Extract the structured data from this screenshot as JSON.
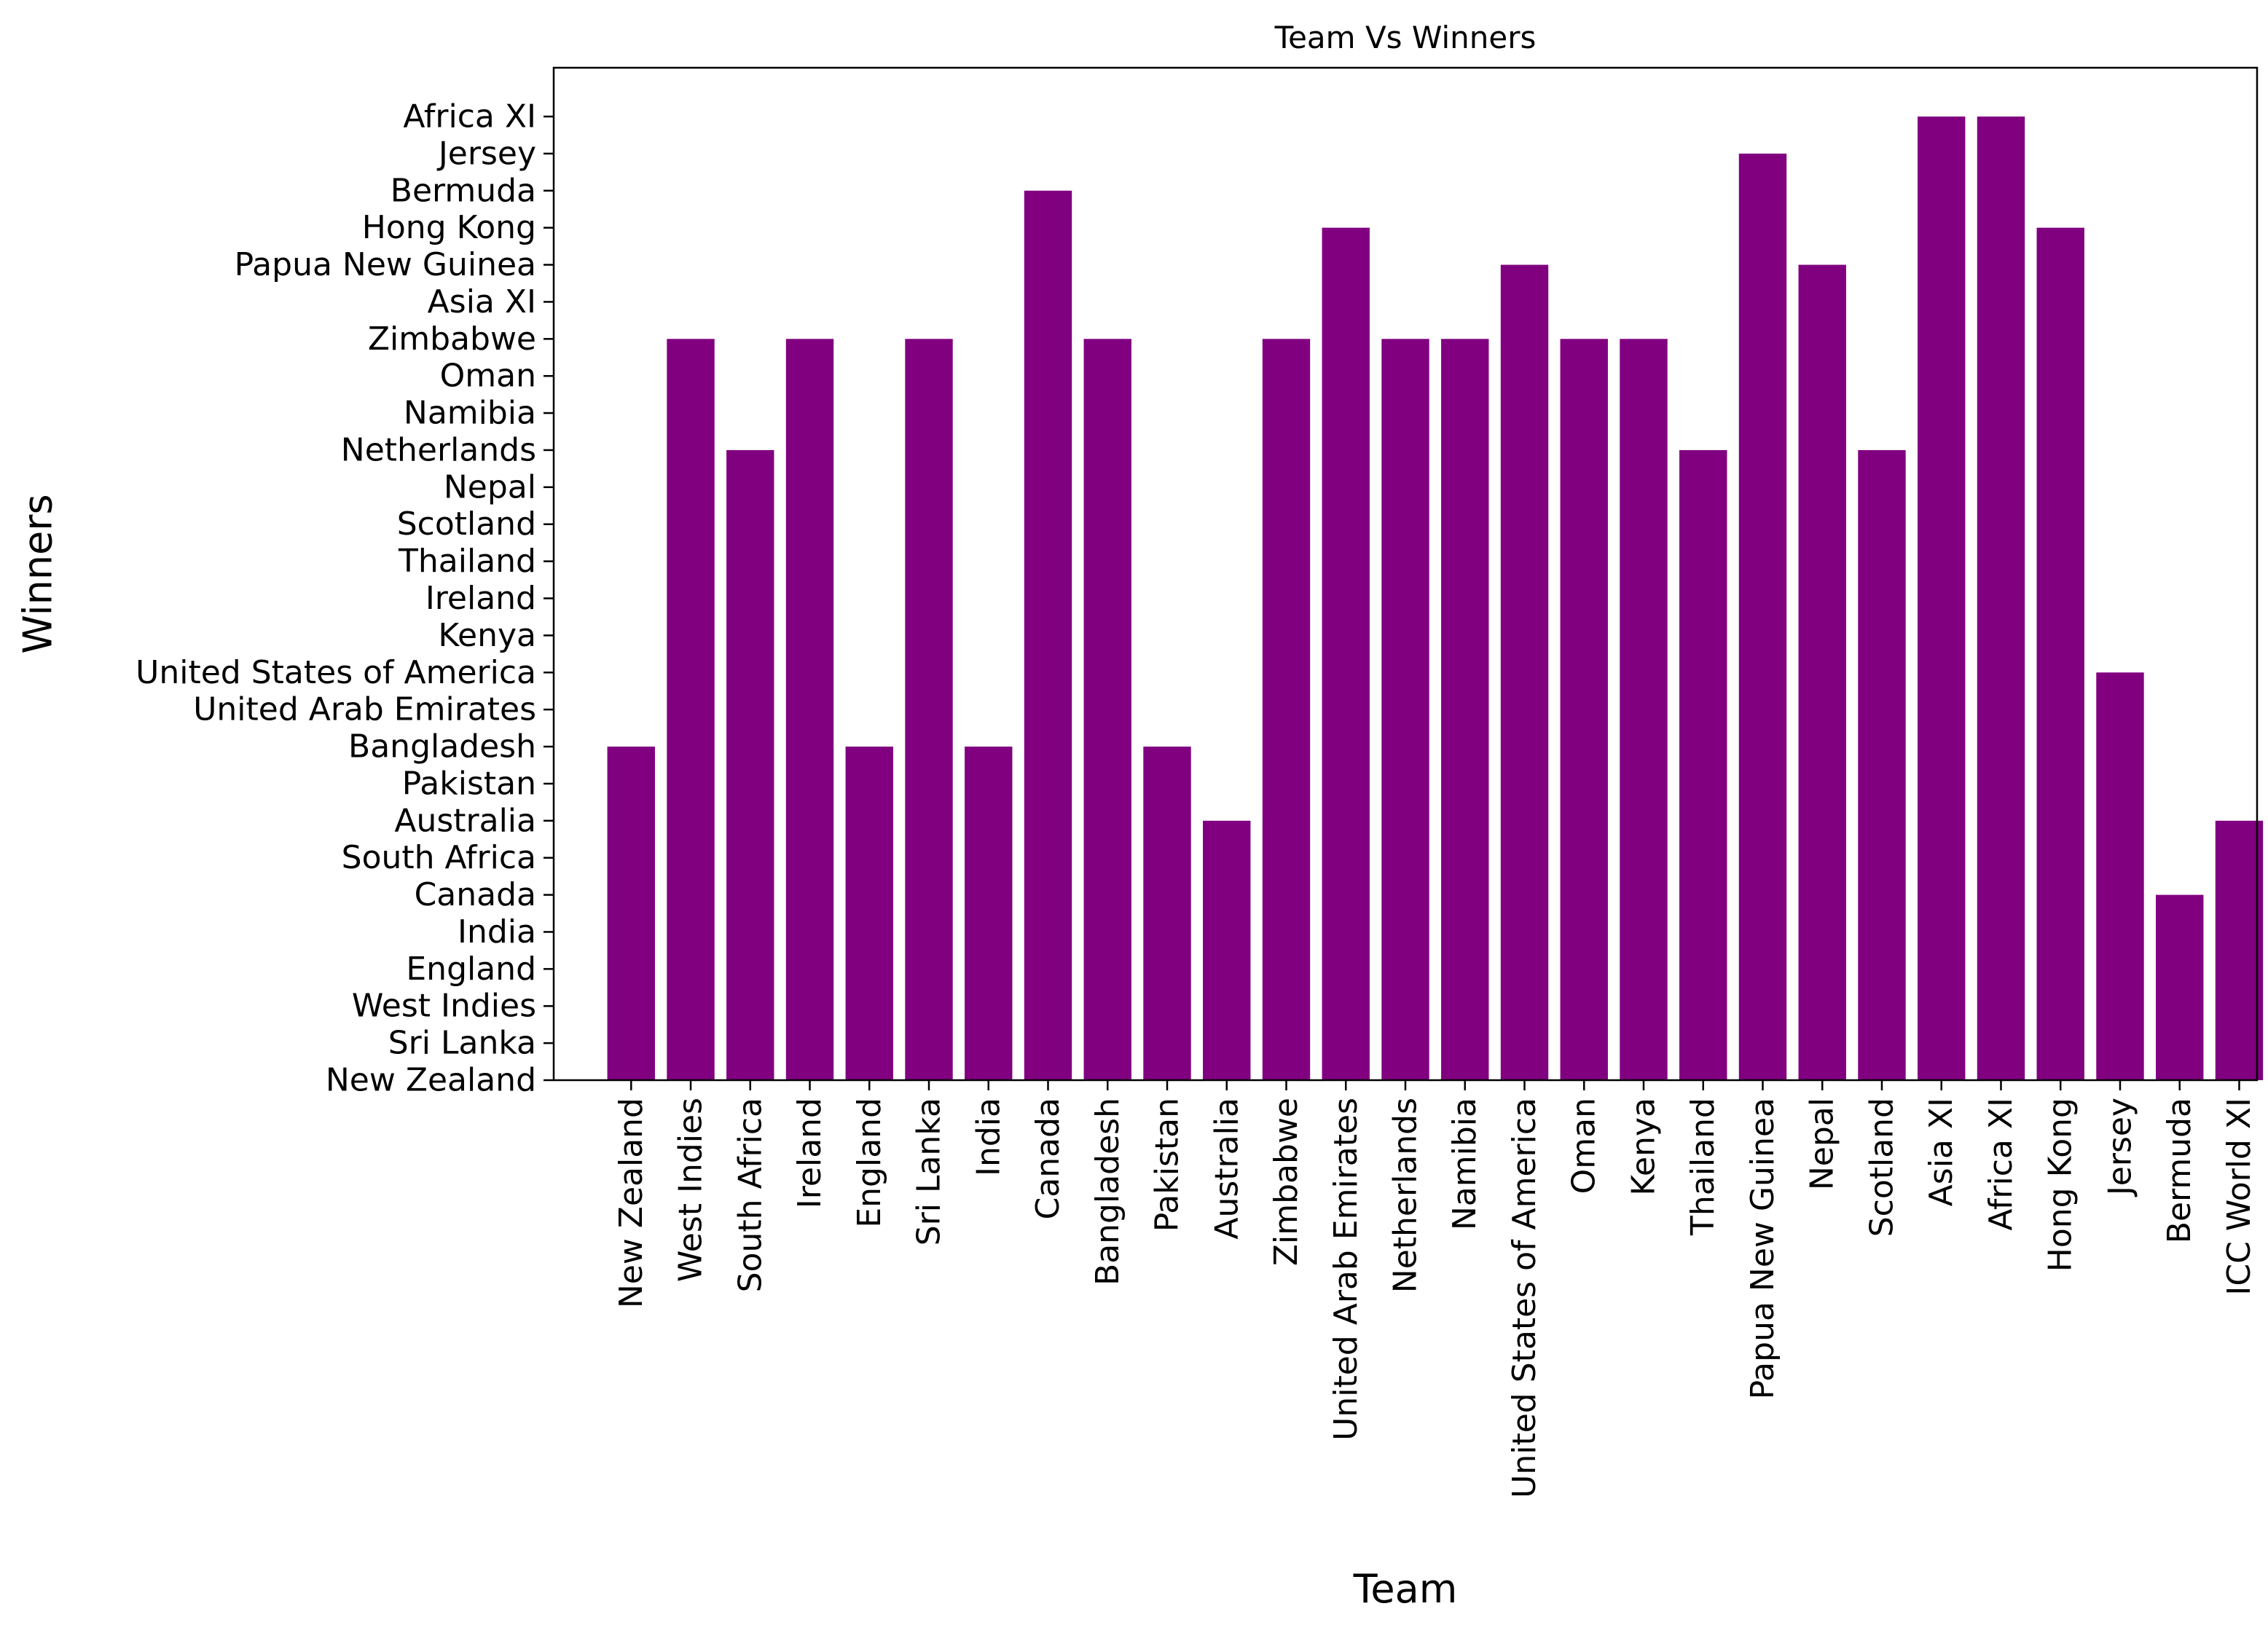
{
  "chart_data": {
    "type": "bar",
    "title": "Team Vs Winners",
    "xlabel": "Team",
    "ylabel": "Winners",
    "bar_color": "#800080",
    "grid": false,
    "categories": [
      "New Zealand",
      "West Indies",
      "South Africa",
      "Ireland",
      "England",
      "Sri Lanka",
      "India",
      "Canada",
      "Bangladesh",
      "Pakistan",
      "Australia",
      "Zimbabwe",
      "United Arab Emirates",
      "Netherlands",
      "Namibia",
      "United States of America",
      "Oman",
      "Kenya",
      "Thailand",
      "Papua New Guinea",
      "Nepal",
      "Scotland",
      "Asia XI",
      "Africa XI",
      "Hong Kong",
      "Jersey",
      "Bermuda",
      "ICC World XI"
    ],
    "y_categories": [
      "New Zealand",
      "Sri Lanka",
      "West Indies",
      "England",
      "India",
      "Canada",
      "South Africa",
      "Australia",
      "Pakistan",
      "Bangladesh",
      "United Arab Emirates",
      "United States of America",
      "Kenya",
      "Ireland",
      "Thailand",
      "Scotland",
      "Nepal",
      "Netherlands",
      "Namibia",
      "Oman",
      "Zimbabwe",
      "Asia XI",
      "Papua New Guinea",
      "Hong Kong",
      "Bermuda",
      "Jersey",
      "Africa XI"
    ],
    "values": [
      "Bangladesh",
      "Zimbabwe",
      "Netherlands",
      "Zimbabwe",
      "Bangladesh",
      "Zimbabwe",
      "Bangladesh",
      "Bermuda",
      "Zimbabwe",
      "Bangladesh",
      "Australia",
      "Zimbabwe",
      "Hong Kong",
      "Zimbabwe",
      "Zimbabwe",
      "Papua New Guinea",
      "Zimbabwe",
      "Zimbabwe",
      "Netherlands",
      "Jersey",
      "Papua New Guinea",
      "Netherlands",
      "Africa XI",
      "Africa XI",
      "Hong Kong",
      "United States of America",
      "Canada",
      "Australia"
    ]
  }
}
